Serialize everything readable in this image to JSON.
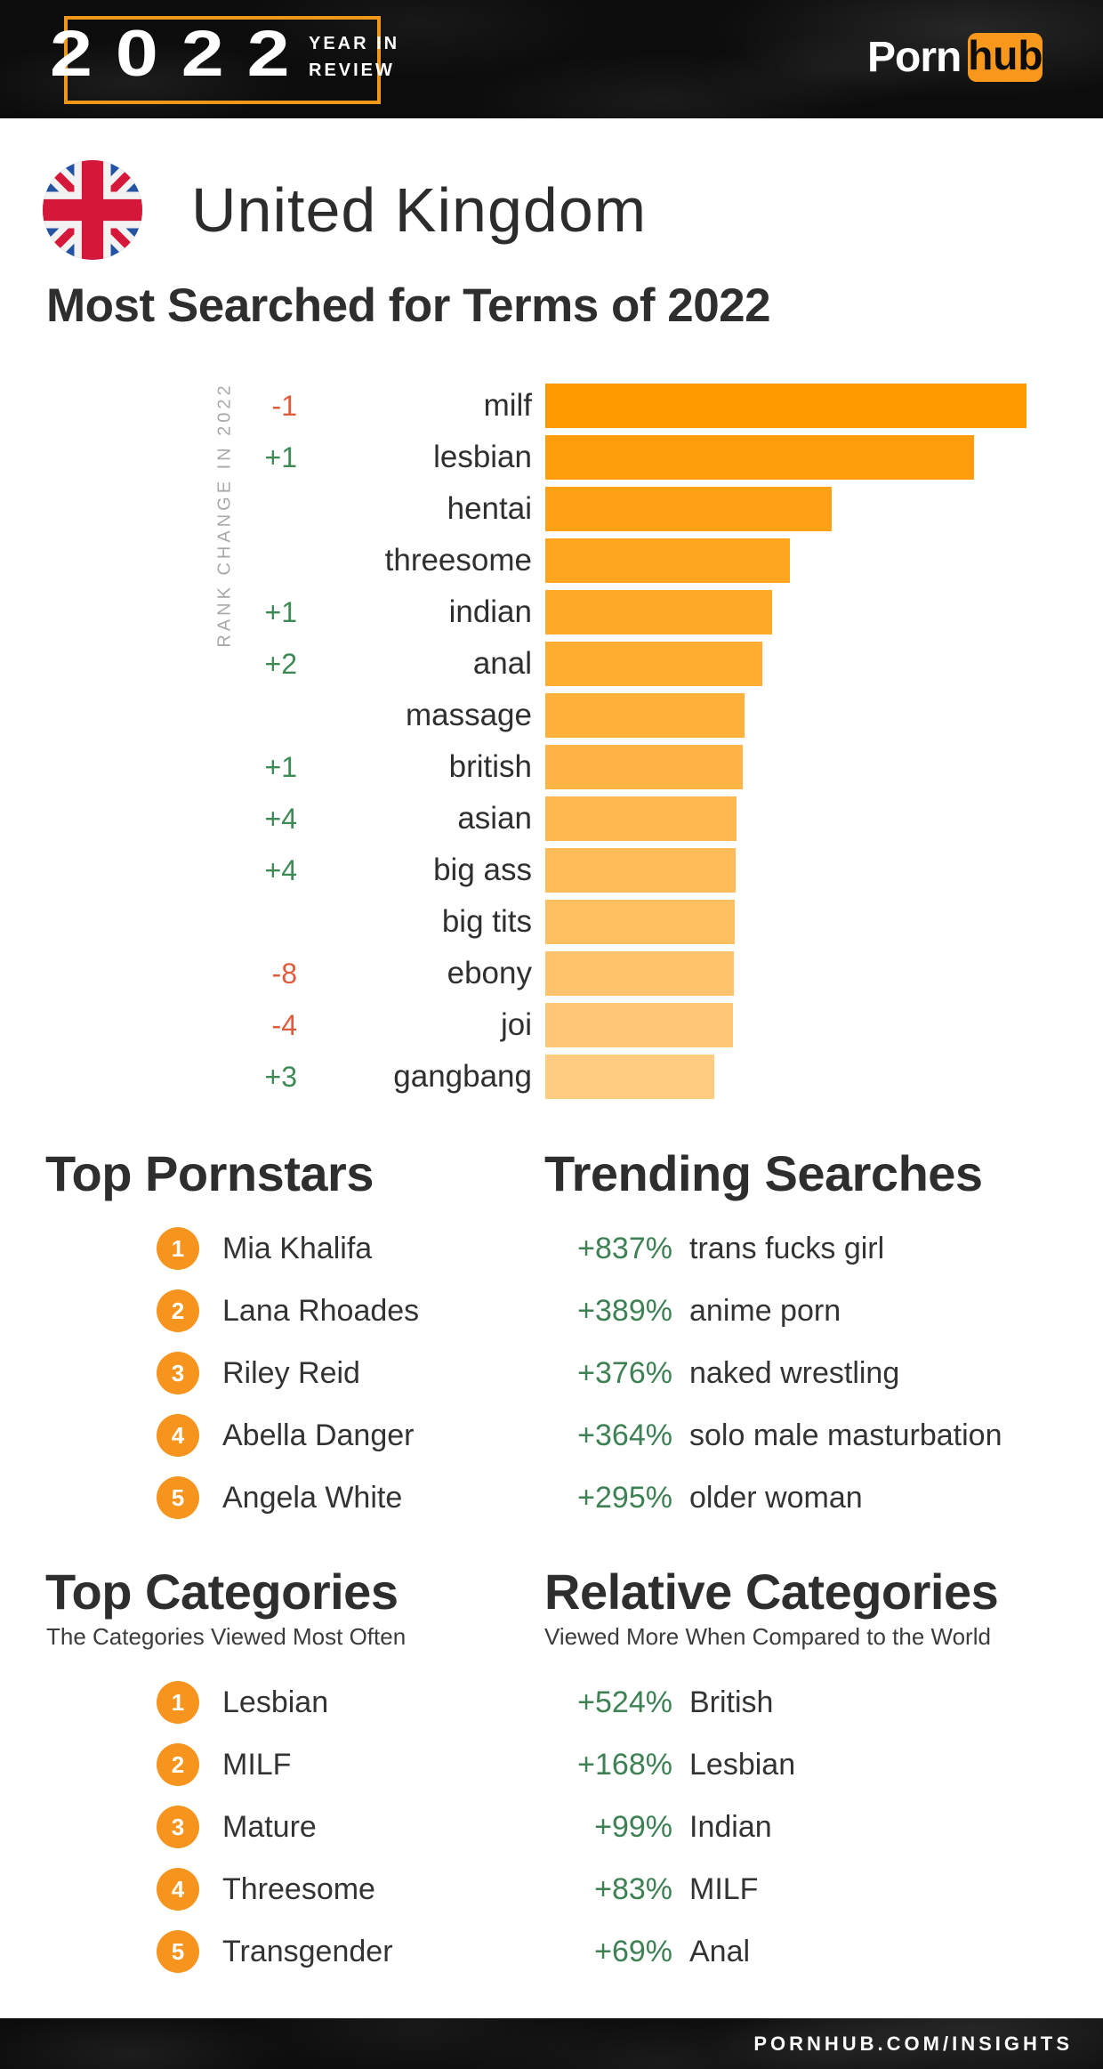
{
  "header": {
    "badge": {
      "year": "2022",
      "tagline_line1": "YEAR IN",
      "tagline_line2": "REVIEW"
    },
    "logo": {
      "porn": "Porn",
      "hub": "hub"
    }
  },
  "country": {
    "name": "United Kingdom"
  },
  "most_searched": {
    "title": "Most Searched for Terms of 2022",
    "axis_label": "RANK CHANGE IN 2022"
  },
  "top_pornstars": {
    "title": "Top Pornstars",
    "items": [
      {
        "rank": "1",
        "name": "Mia Khalifa"
      },
      {
        "rank": "2",
        "name": "Lana Rhoades"
      },
      {
        "rank": "3",
        "name": "Riley Reid"
      },
      {
        "rank": "4",
        "name": "Abella Danger"
      },
      {
        "rank": "5",
        "name": "Angela White"
      }
    ]
  },
  "trending_searches": {
    "title": "Trending Searches",
    "items": [
      {
        "change": "+837%",
        "term": "trans fucks girl"
      },
      {
        "change": "+389%",
        "term": "anime porn"
      },
      {
        "change": "+376%",
        "term": "naked wrestling"
      },
      {
        "change": "+364%",
        "term": "solo male masturbation"
      },
      {
        "change": "+295%",
        "term": "older woman"
      }
    ]
  },
  "top_categories": {
    "title": "Top Categories",
    "subtitle": "The Categories Viewed Most Often",
    "items": [
      {
        "rank": "1",
        "name": "Lesbian"
      },
      {
        "rank": "2",
        "name": "MILF"
      },
      {
        "rank": "3",
        "name": "Mature"
      },
      {
        "rank": "4",
        "name": "Threesome"
      },
      {
        "rank": "5",
        "name": "Transgender"
      }
    ]
  },
  "relative_categories": {
    "title": "Relative Categories",
    "subtitle": "Viewed More When Compared to the World",
    "items": [
      {
        "change": "+524%",
        "name": "British"
      },
      {
        "change": "+168%",
        "name": "Lesbian"
      },
      {
        "change": "+99%",
        "name": "Indian"
      },
      {
        "change": "+83%",
        "name": "MILF"
      },
      {
        "change": "+69%",
        "name": "Anal"
      }
    ]
  },
  "footer": {
    "url": "PORNHUB.COM/INSIGHTS"
  },
  "colors": {
    "accent_orange": "#F7941D",
    "frame_orange": "#F0971A",
    "bar_top": "#FF9900",
    "bar_bottom": "#FFCC80",
    "positive_green": "#3E8A55",
    "negative_red": "#DF5B3C",
    "flag_blue": "#2553A4",
    "flag_red": "#D5173A"
  },
  "chart_data": {
    "type": "bar",
    "orientation": "horizontal",
    "title": "Most Searched for Terms of 2022",
    "axis_label": "RANK CHANGE IN 2022",
    "categories": [
      "milf",
      "lesbian",
      "hentai",
      "threesome",
      "indian",
      "anal",
      "massage",
      "british",
      "asian",
      "big ass",
      "big tits",
      "ebony",
      "joi",
      "gangbang"
    ],
    "values": [
      541,
      482,
      322,
      275,
      255,
      244,
      224,
      222,
      215,
      214,
      213,
      212,
      211,
      190
    ],
    "values_note": "relative bar lengths in px; chart displays no numeric axis",
    "rank_change": [
      "-1",
      "+1",
      "",
      "",
      "+1",
      "+2",
      "",
      "+1",
      "+4",
      "+4",
      "",
      "-8",
      "-4",
      "+3"
    ],
    "grid": false,
    "legend": false
  }
}
